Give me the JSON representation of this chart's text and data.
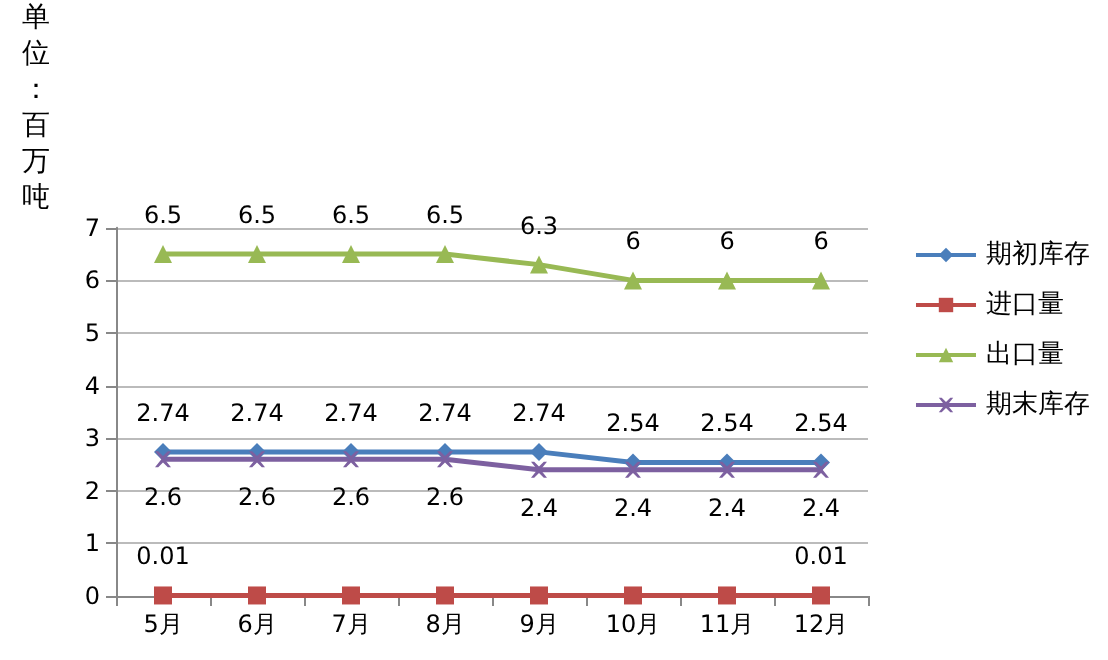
{
  "chart_data": {
    "type": "line",
    "ylabel": "单位：百万吨",
    "categories": [
      "5月",
      "6月",
      "7月",
      "8月",
      "9月",
      "10月",
      "11月",
      "12月"
    ],
    "series": [
      {
        "name": "期初库存",
        "color": "#4a7ebb",
        "marker": "diamond",
        "values": [
          2.74,
          2.74,
          2.74,
          2.74,
          2.74,
          2.54,
          2.54,
          2.54
        ],
        "value_labels": [
          "2.74",
          "2.74",
          "2.74",
          "2.74",
          "2.74",
          "2.54",
          "2.54",
          "2.54"
        ]
      },
      {
        "name": "进口量",
        "color": "#be4b48",
        "marker": "square",
        "values": [
          0.01,
          0.01,
          0.01,
          0.01,
          0.01,
          0.01,
          0.01,
          0.01
        ],
        "value_labels": [
          "0.01",
          null,
          null,
          null,
          null,
          null,
          null,
          "0.01"
        ]
      },
      {
        "name": "出口量",
        "color": "#98b954",
        "marker": "triangle",
        "values": [
          6.5,
          6.5,
          6.5,
          6.5,
          6.3,
          6,
          6,
          6
        ],
        "value_labels": [
          "6.5",
          "6.5",
          "6.5",
          "6.5",
          "6.3",
          "6",
          "6",
          "6"
        ]
      },
      {
        "name": "期末库存",
        "color": "#7d60a0",
        "marker": "cross",
        "values": [
          2.6,
          2.6,
          2.6,
          2.6,
          2.4,
          2.4,
          2.4,
          2.4
        ],
        "value_labels": [
          "2.6",
          "2.6",
          "2.6",
          "2.6",
          "2.4",
          "2.4",
          "2.4",
          "2.4"
        ]
      }
    ],
    "ylim": [
      0,
      7
    ],
    "yticks": [
      0,
      1,
      2,
      3,
      4,
      5,
      6,
      7
    ],
    "grid": "y",
    "legend": "right"
  }
}
